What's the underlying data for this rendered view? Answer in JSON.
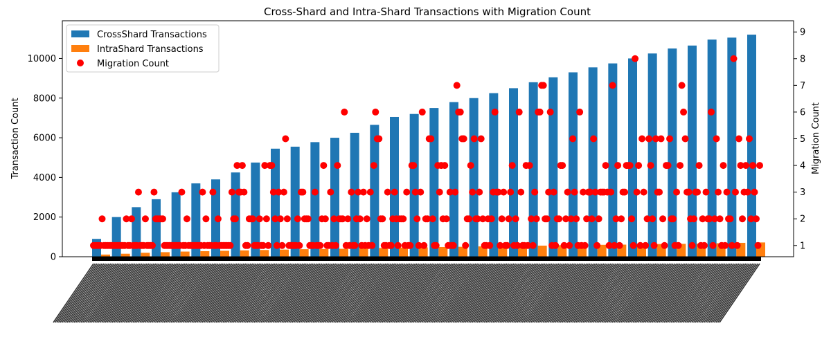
{
  "chart_data": {
    "type": "bar",
    "title": "Cross-Shard and Intra-Shard Transactions with Migration Count",
    "xlabel": "",
    "ylabel": "Transaction Count",
    "y2label": "Migration Count",
    "ylim": [
      0,
      11900
    ],
    "y2lim": [
      0.58,
      9.42
    ],
    "yticks": [
      0,
      2000,
      4000,
      6000,
      8000,
      10000
    ],
    "y2ticks": [
      1,
      2,
      3,
      4,
      5,
      6,
      7,
      8,
      9
    ],
    "grid": false,
    "legend_position": "top-left",
    "x_tick_labels_legible": false,
    "series": [
      {
        "name": "CrossShard Transactions",
        "type": "bar",
        "color": "#1f77b4",
        "values": [
          900,
          2000,
          2500,
          2900,
          3250,
          3700,
          3900,
          4250,
          4750,
          5450,
          5550,
          5780,
          6000,
          6250,
          6650,
          7050,
          7200,
          7500,
          7800,
          8000,
          8250,
          8500,
          8800,
          9050,
          9300,
          9550,
          9750,
          10000,
          10250,
          10500,
          10650,
          10950,
          11050,
          11200
        ]
      },
      {
        "name": "IntraShard Transactions",
        "type": "bar",
        "color": "#ff7f0e",
        "values": [
          110,
          150,
          200,
          230,
          260,
          280,
          300,
          320,
          340,
          360,
          380,
          390,
          400,
          420,
          440,
          460,
          470,
          490,
          500,
          520,
          540,
          550,
          560,
          580,
          590,
          600,
          610,
          630,
          640,
          650,
          660,
          680,
          700,
          720
        ]
      },
      {
        "name": "Migration Count",
        "type": "scatter",
        "color": "#ff0000",
        "values": [
          1,
          1,
          1,
          1,
          1,
          2,
          1,
          1,
          1,
          1,
          1,
          1,
          1,
          1,
          1,
          1,
          1,
          1,
          1,
          2,
          1,
          1,
          2,
          1,
          1,
          1,
          3,
          1,
          1,
          1,
          2,
          1,
          1,
          1,
          1,
          3,
          2,
          2,
          2,
          2,
          2,
          1,
          1,
          1,
          1,
          1,
          1,
          1,
          1,
          1,
          1,
          3,
          1,
          1,
          2,
          1,
          1,
          1,
          1,
          1,
          1,
          1,
          1,
          3,
          1,
          2,
          1,
          1,
          1,
          3,
          1,
          1,
          2,
          1,
          1,
          1,
          1,
          1,
          1,
          1,
          3,
          2,
          2,
          4,
          3,
          3,
          4,
          3,
          1,
          1,
          2,
          2,
          2,
          1,
          1,
          1,
          2,
          1,
          1,
          4,
          2,
          1,
          4,
          4,
          3,
          2,
          1,
          3,
          2,
          1,
          3,
          5,
          2,
          1,
          1,
          1,
          1,
          1,
          2,
          1,
          3,
          3,
          2,
          2,
          2,
          1,
          1,
          1,
          3,
          1,
          1,
          1,
          2,
          4,
          2,
          1,
          1,
          3,
          1,
          2,
          1,
          4,
          2,
          2,
          2,
          6,
          1,
          2,
          1,
          3,
          1,
          1,
          2,
          3,
          2,
          1,
          3,
          1,
          2,
          1,
          3,
          1,
          4,
          6,
          5,
          5,
          2,
          2,
          1,
          1,
          3,
          1,
          1,
          2,
          3,
          2,
          1,
          2,
          2,
          2,
          1,
          3,
          1,
          1,
          4,
          4,
          3,
          2,
          1,
          3,
          6,
          1,
          2,
          2,
          5,
          5,
          2,
          1,
          1,
          4,
          3,
          4,
          2,
          4,
          2,
          1,
          3,
          1,
          1,
          3,
          7,
          6,
          6,
          5,
          5,
          1,
          2,
          2,
          4,
          3,
          5,
          2,
          2,
          3,
          5,
          2,
          1,
          1,
          2,
          1,
          2,
          3,
          6,
          3,
          3,
          1,
          2,
          3,
          1,
          1,
          2,
          3,
          4,
          1,
          2,
          1,
          6,
          3,
          1,
          1,
          4,
          1,
          4,
          2,
          1,
          3,
          2,
          6,
          6,
          7,
          7,
          2,
          2,
          3,
          6,
          1,
          3,
          1,
          2,
          2,
          4,
          4,
          1,
          2,
          3,
          1,
          2,
          5,
          3,
          2,
          1,
          6,
          1,
          3,
          1,
          2,
          3,
          3,
          2,
          5,
          3,
          1,
          2,
          3,
          3,
          3,
          4,
          3,
          1,
          3,
          7,
          1,
          2,
          4,
          1,
          2,
          3,
          3,
          4,
          4,
          4,
          2,
          1,
          8,
          3,
          4,
          1,
          5,
          3,
          1,
          2,
          5,
          4,
          2,
          1,
          5,
          3,
          3,
          5,
          2,
          1,
          4,
          4,
          5,
          2,
          2,
          1,
          3,
          1,
          4,
          7,
          6,
          5,
          3,
          3,
          2,
          1,
          2,
          3,
          3,
          4,
          1,
          2,
          1,
          3,
          2,
          2,
          6,
          1,
          2,
          5,
          3,
          2,
          1,
          4,
          1,
          3,
          2,
          2,
          1,
          8,
          3,
          1,
          5,
          4,
          2,
          3,
          4,
          3,
          5,
          2,
          4,
          3,
          2,
          1,
          4
        ]
      }
    ]
  }
}
